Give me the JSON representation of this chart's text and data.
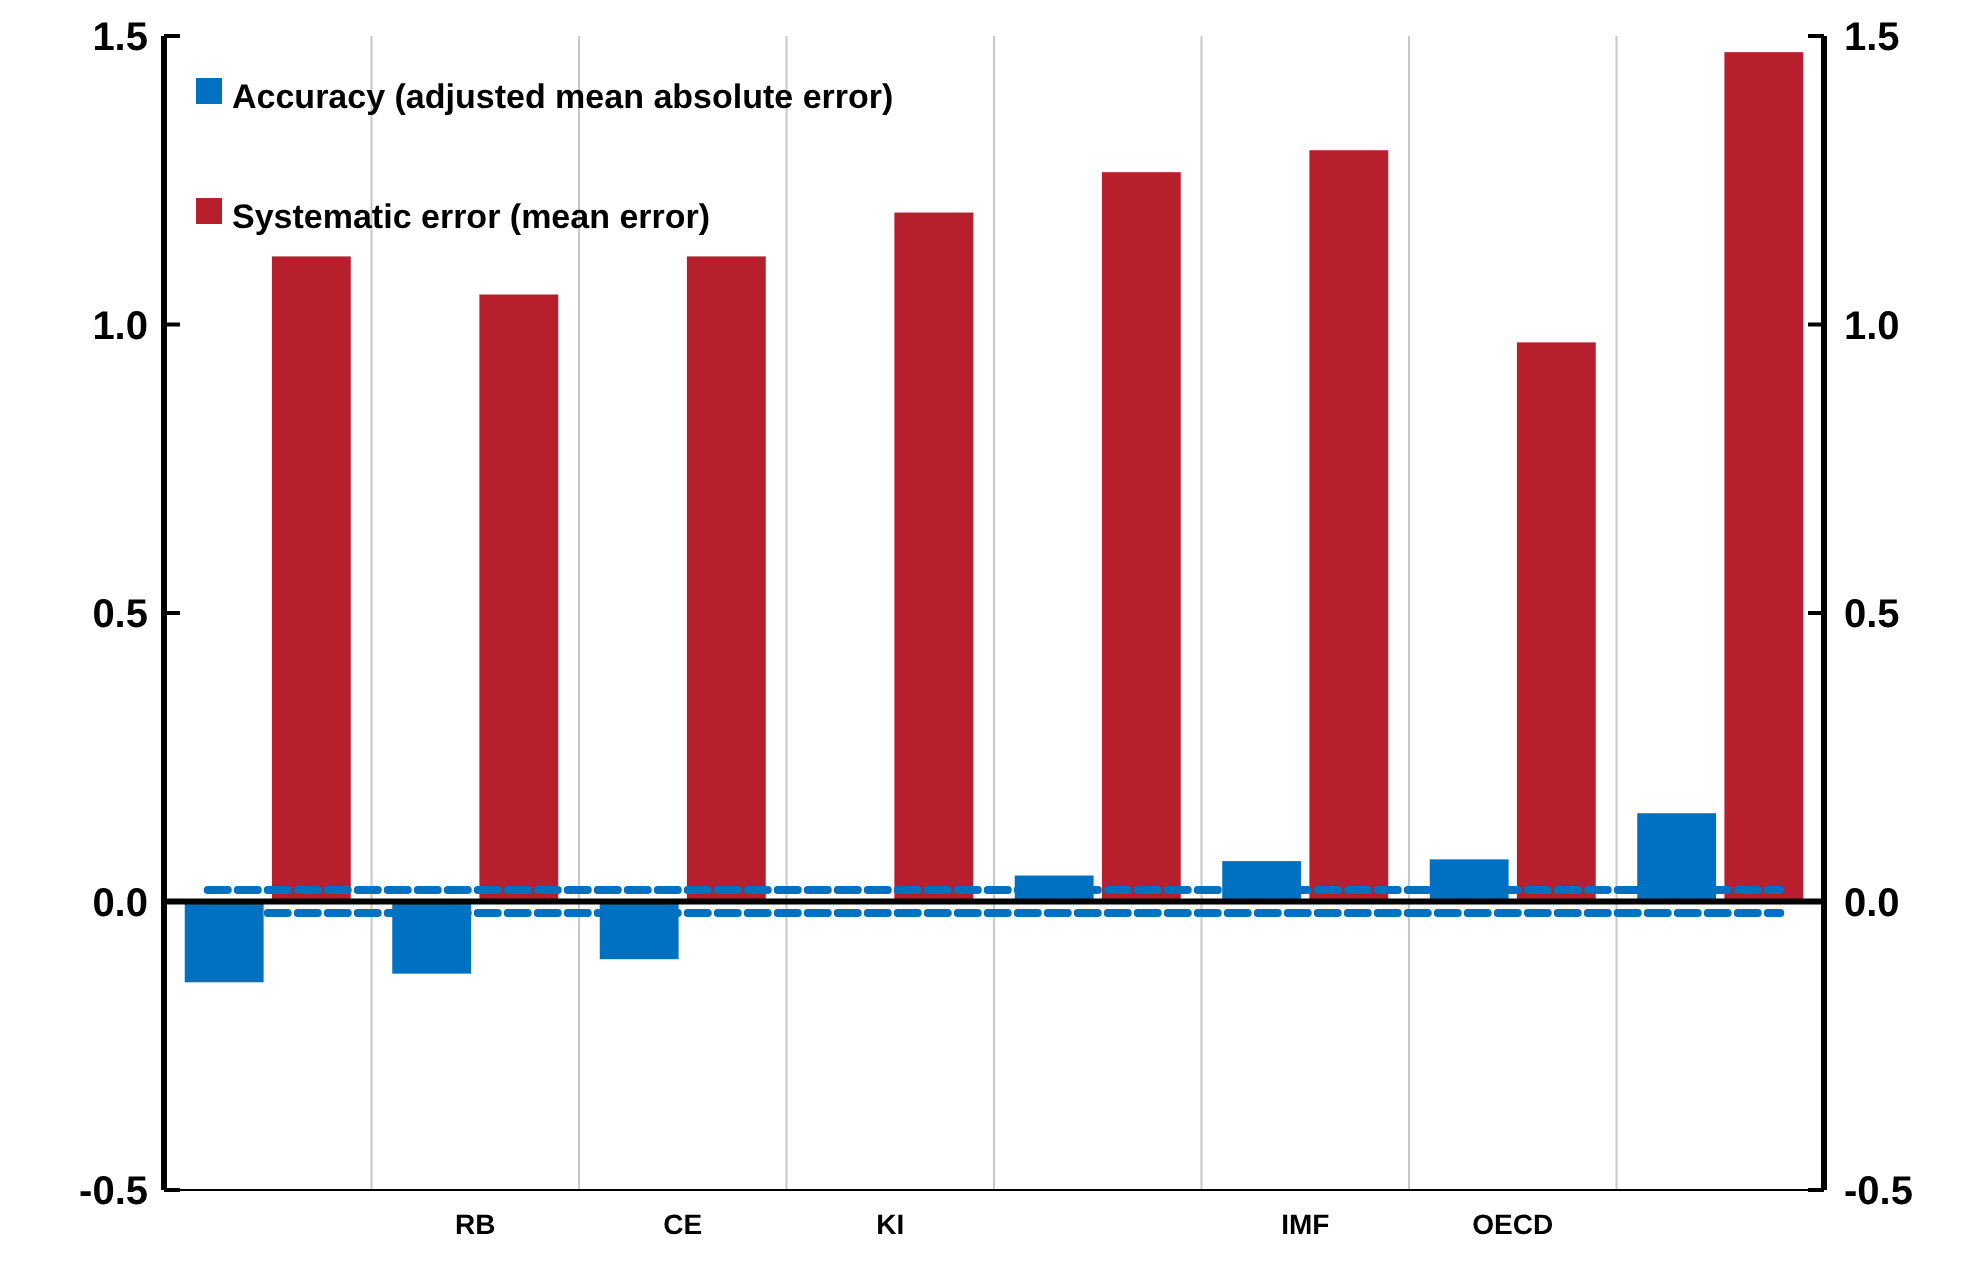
{
  "chart_data": {
    "type": "bar",
    "categories": [
      null,
      "RB",
      "CE",
      "KI",
      null,
      "IMF",
      "OECD",
      null
    ],
    "series": [
      {
        "name": "Accuracy (adjusted mean absolute error)",
        "color": "#0070c0",
        "values": [
          -0.14,
          -0.125,
          -0.1,
          null,
          0.045,
          0.07,
          0.073,
          0.153
        ]
      },
      {
        "name": "Systematic error (mean error)",
        "color": "#b81f2d",
        "values": [
          1.118,
          1.052,
          1.118,
          1.194,
          1.264,
          1.302,
          0.969,
          1.472
        ]
      }
    ],
    "ylim": [
      -0.5,
      1.5
    ],
    "yticks": [
      {
        "value": -0.5,
        "label": "-0.5"
      },
      {
        "value": 0,
        "label": "0.0"
      },
      {
        "value": 0.5,
        "label": "0.5"
      },
      {
        "value": 1,
        "label": "1.0"
      },
      {
        "value": 1.5,
        "label": "1.5"
      }
    ],
    "y2lim": [
      -0.5,
      1.5
    ],
    "y2ticks": [
      {
        "value": -0.5,
        "label": "-0.5"
      },
      {
        "value": 0,
        "label": "0.0"
      },
      {
        "value": 0.5,
        "label": "0.5"
      },
      {
        "value": 1,
        "label": "1.0"
      },
      {
        "value": 1.5,
        "label": "1.5"
      }
    ],
    "ref_lines": [
      {
        "axis": "y",
        "value": 0.02,
        "color": "#0070c0",
        "line_style": "dashed"
      },
      {
        "axis": "y",
        "value": -0.02,
        "color": "#0070c0",
        "line_style": "dashed"
      }
    ],
    "grid": "x",
    "legend": "top left"
  }
}
